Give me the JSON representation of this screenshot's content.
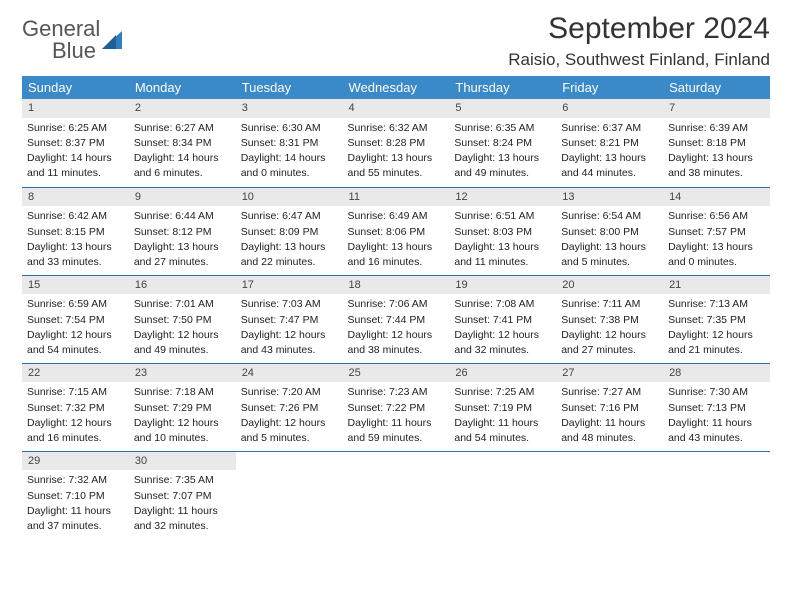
{
  "brand": {
    "general": "General",
    "blue": "Blue"
  },
  "title": "September 2024",
  "location": "Raisio, Southwest Finland, Finland",
  "columns": [
    "Sunday",
    "Monday",
    "Tuesday",
    "Wednesday",
    "Thursday",
    "Friday",
    "Saturday"
  ],
  "colors": {
    "header_bg": "#3a89c9",
    "rule": "#2f6fa8",
    "daynum_bg": "#e9e9e9",
    "brand_blue": "#2f7fbf"
  },
  "weeks": [
    [
      {
        "n": "1",
        "sr": "Sunrise: 6:25 AM",
        "ss": "Sunset: 8:37 PM",
        "d1": "Daylight: 14 hours",
        "d2": "and 11 minutes."
      },
      {
        "n": "2",
        "sr": "Sunrise: 6:27 AM",
        "ss": "Sunset: 8:34 PM",
        "d1": "Daylight: 14 hours",
        "d2": "and 6 minutes."
      },
      {
        "n": "3",
        "sr": "Sunrise: 6:30 AM",
        "ss": "Sunset: 8:31 PM",
        "d1": "Daylight: 14 hours",
        "d2": "and 0 minutes."
      },
      {
        "n": "4",
        "sr": "Sunrise: 6:32 AM",
        "ss": "Sunset: 8:28 PM",
        "d1": "Daylight: 13 hours",
        "d2": "and 55 minutes."
      },
      {
        "n": "5",
        "sr": "Sunrise: 6:35 AM",
        "ss": "Sunset: 8:24 PM",
        "d1": "Daylight: 13 hours",
        "d2": "and 49 minutes."
      },
      {
        "n": "6",
        "sr": "Sunrise: 6:37 AM",
        "ss": "Sunset: 8:21 PM",
        "d1": "Daylight: 13 hours",
        "d2": "and 44 minutes."
      },
      {
        "n": "7",
        "sr": "Sunrise: 6:39 AM",
        "ss": "Sunset: 8:18 PM",
        "d1": "Daylight: 13 hours",
        "d2": "and 38 minutes."
      }
    ],
    [
      {
        "n": "8",
        "sr": "Sunrise: 6:42 AM",
        "ss": "Sunset: 8:15 PM",
        "d1": "Daylight: 13 hours",
        "d2": "and 33 minutes."
      },
      {
        "n": "9",
        "sr": "Sunrise: 6:44 AM",
        "ss": "Sunset: 8:12 PM",
        "d1": "Daylight: 13 hours",
        "d2": "and 27 minutes."
      },
      {
        "n": "10",
        "sr": "Sunrise: 6:47 AM",
        "ss": "Sunset: 8:09 PM",
        "d1": "Daylight: 13 hours",
        "d2": "and 22 minutes."
      },
      {
        "n": "11",
        "sr": "Sunrise: 6:49 AM",
        "ss": "Sunset: 8:06 PM",
        "d1": "Daylight: 13 hours",
        "d2": "and 16 minutes."
      },
      {
        "n": "12",
        "sr": "Sunrise: 6:51 AM",
        "ss": "Sunset: 8:03 PM",
        "d1": "Daylight: 13 hours",
        "d2": "and 11 minutes."
      },
      {
        "n": "13",
        "sr": "Sunrise: 6:54 AM",
        "ss": "Sunset: 8:00 PM",
        "d1": "Daylight: 13 hours",
        "d2": "and 5 minutes."
      },
      {
        "n": "14",
        "sr": "Sunrise: 6:56 AM",
        "ss": "Sunset: 7:57 PM",
        "d1": "Daylight: 13 hours",
        "d2": "and 0 minutes."
      }
    ],
    [
      {
        "n": "15",
        "sr": "Sunrise: 6:59 AM",
        "ss": "Sunset: 7:54 PM",
        "d1": "Daylight: 12 hours",
        "d2": "and 54 minutes."
      },
      {
        "n": "16",
        "sr": "Sunrise: 7:01 AM",
        "ss": "Sunset: 7:50 PM",
        "d1": "Daylight: 12 hours",
        "d2": "and 49 minutes."
      },
      {
        "n": "17",
        "sr": "Sunrise: 7:03 AM",
        "ss": "Sunset: 7:47 PM",
        "d1": "Daylight: 12 hours",
        "d2": "and 43 minutes."
      },
      {
        "n": "18",
        "sr": "Sunrise: 7:06 AM",
        "ss": "Sunset: 7:44 PM",
        "d1": "Daylight: 12 hours",
        "d2": "and 38 minutes."
      },
      {
        "n": "19",
        "sr": "Sunrise: 7:08 AM",
        "ss": "Sunset: 7:41 PM",
        "d1": "Daylight: 12 hours",
        "d2": "and 32 minutes."
      },
      {
        "n": "20",
        "sr": "Sunrise: 7:11 AM",
        "ss": "Sunset: 7:38 PM",
        "d1": "Daylight: 12 hours",
        "d2": "and 27 minutes."
      },
      {
        "n": "21",
        "sr": "Sunrise: 7:13 AM",
        "ss": "Sunset: 7:35 PM",
        "d1": "Daylight: 12 hours",
        "d2": "and 21 minutes."
      }
    ],
    [
      {
        "n": "22",
        "sr": "Sunrise: 7:15 AM",
        "ss": "Sunset: 7:32 PM",
        "d1": "Daylight: 12 hours",
        "d2": "and 16 minutes."
      },
      {
        "n": "23",
        "sr": "Sunrise: 7:18 AM",
        "ss": "Sunset: 7:29 PM",
        "d1": "Daylight: 12 hours",
        "d2": "and 10 minutes."
      },
      {
        "n": "24",
        "sr": "Sunrise: 7:20 AM",
        "ss": "Sunset: 7:26 PM",
        "d1": "Daylight: 12 hours",
        "d2": "and 5 minutes."
      },
      {
        "n": "25",
        "sr": "Sunrise: 7:23 AM",
        "ss": "Sunset: 7:22 PM",
        "d1": "Daylight: 11 hours",
        "d2": "and 59 minutes."
      },
      {
        "n": "26",
        "sr": "Sunrise: 7:25 AM",
        "ss": "Sunset: 7:19 PM",
        "d1": "Daylight: 11 hours",
        "d2": "and 54 minutes."
      },
      {
        "n": "27",
        "sr": "Sunrise: 7:27 AM",
        "ss": "Sunset: 7:16 PM",
        "d1": "Daylight: 11 hours",
        "d2": "and 48 minutes."
      },
      {
        "n": "28",
        "sr": "Sunrise: 7:30 AM",
        "ss": "Sunset: 7:13 PM",
        "d1": "Daylight: 11 hours",
        "d2": "and 43 minutes."
      }
    ],
    [
      {
        "n": "29",
        "sr": "Sunrise: 7:32 AM",
        "ss": "Sunset: 7:10 PM",
        "d1": "Daylight: 11 hours",
        "d2": "and 37 minutes."
      },
      {
        "n": "30",
        "sr": "Sunrise: 7:35 AM",
        "ss": "Sunset: 7:07 PM",
        "d1": "Daylight: 11 hours",
        "d2": "and 32 minutes."
      },
      null,
      null,
      null,
      null,
      null
    ]
  ]
}
